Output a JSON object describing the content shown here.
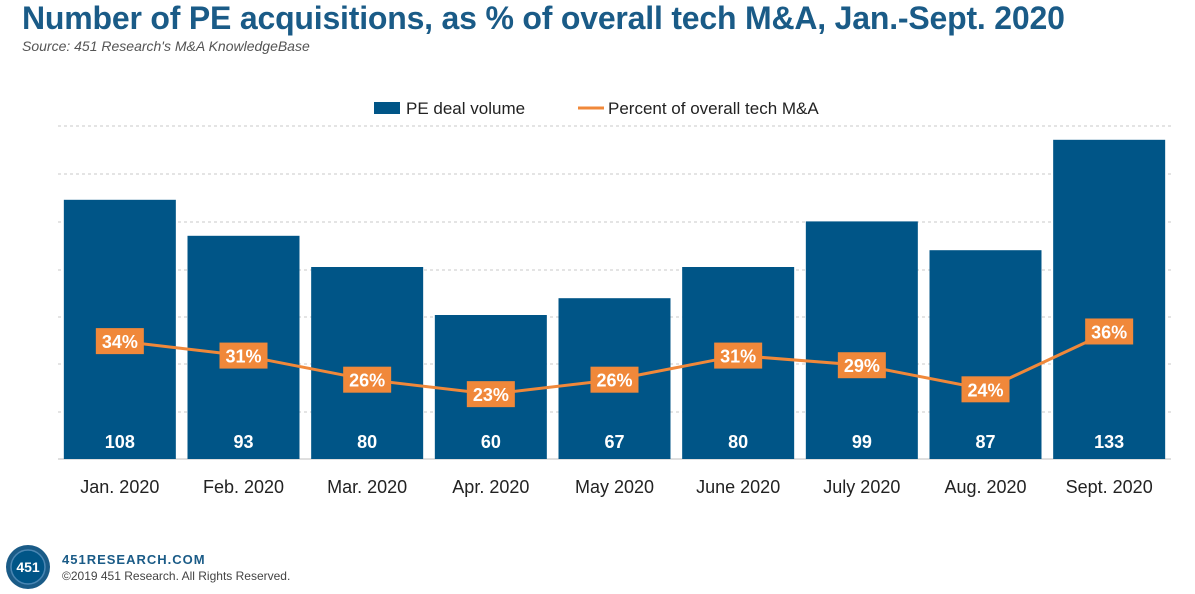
{
  "title": "Number of PE acquisitions, as % of overall tech M&A, Jan.-Sept. 2020",
  "subtitle": "Source: 451 Research's M&A KnowledgeBase",
  "footer": {
    "logo_text": "451",
    "url": "451RESEARCH.COM",
    "copyright": "©2019 451 Research. All Rights Reserved."
  },
  "colors": {
    "bar": "#005587",
    "line": "#f0883a",
    "title": "#1a5b87"
  },
  "chart_data": {
    "type": "bar",
    "categories": [
      "Jan. 2020",
      "Feb. 2020",
      "Mar. 2020",
      "Apr. 2020",
      "May 2020",
      "June 2020",
      "July 2020",
      "Aug. 2020",
      "Sept. 2020"
    ],
    "series": [
      {
        "name": "PE deal volume",
        "type": "bar",
        "values": [
          108,
          93,
          80,
          60,
          67,
          80,
          99,
          87,
          133
        ],
        "labels": [
          "108",
          "93",
          "80",
          "60",
          "67",
          "80",
          "99",
          "87",
          "133"
        ]
      },
      {
        "name": "Percent of overall tech M&A",
        "type": "line",
        "values": [
          34,
          31,
          26,
          23,
          26,
          31,
          29,
          24,
          36
        ],
        "labels": [
          "34%",
          "31%",
          "26%",
          "23%",
          "26%",
          "31%",
          "29%",
          "24%",
          "36%"
        ]
      }
    ],
    "bar_ylim": [
      0,
      140
    ],
    "line_ylim": [
      0,
      40
    ],
    "grid": true,
    "legend": "top-center"
  }
}
